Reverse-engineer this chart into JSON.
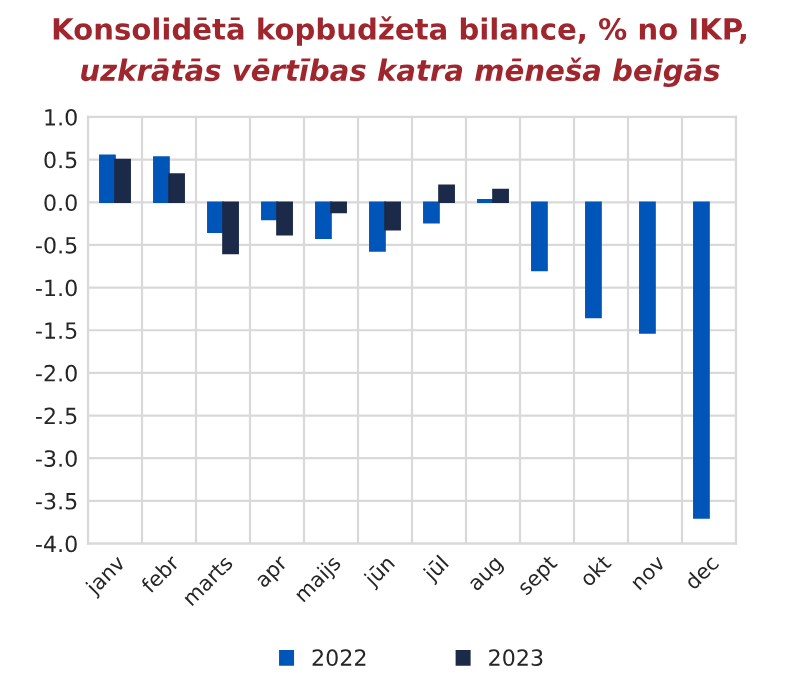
{
  "chart_data": {
    "type": "bar",
    "title": "Konsolidētā kopbudžeta bilance, % no IKP,",
    "subtitle": "uzkrātās vērtības katra mēneša beigās",
    "categories": [
      "janv",
      "febr",
      "marts",
      "apr",
      "maijs",
      "jūn",
      "jūl",
      "aug",
      "sept",
      "okt",
      "nov",
      "dec"
    ],
    "series": [
      {
        "name": "2022",
        "color": "#0055b8",
        "values": [
          0.55,
          0.53,
          -0.35,
          -0.2,
          -0.42,
          -0.57,
          -0.24,
          0.03,
          -0.8,
          -1.35,
          -1.53,
          -3.7
        ]
      },
      {
        "name": "2023",
        "color": "#1c2a4a",
        "values": [
          0.5,
          0.33,
          -0.6,
          -0.38,
          -0.12,
          -0.32,
          0.2,
          0.15,
          null,
          null,
          null,
          null
        ]
      }
    ],
    "ylim": [
      -4.0,
      1.0
    ],
    "yticks": [
      {
        "value": -4,
        "label": "-4.0"
      },
      {
        "value": -3.5,
        "label": "-3.5"
      },
      {
        "value": -3,
        "label": "-3.0"
      },
      {
        "value": -2.5,
        "label": "-2.5"
      },
      {
        "value": -2,
        "label": "-2.0"
      },
      {
        "value": -1.5,
        "label": "-1.5"
      },
      {
        "value": -1,
        "label": "-1.0"
      },
      {
        "value": -0.5,
        "label": "-0.5"
      },
      {
        "value": 0,
        "label": "0.0"
      },
      {
        "value": 0.5,
        "label": "0.5"
      },
      {
        "value": 1,
        "label": "1.0"
      }
    ],
    "grid": true,
    "legend": "bottom"
  }
}
